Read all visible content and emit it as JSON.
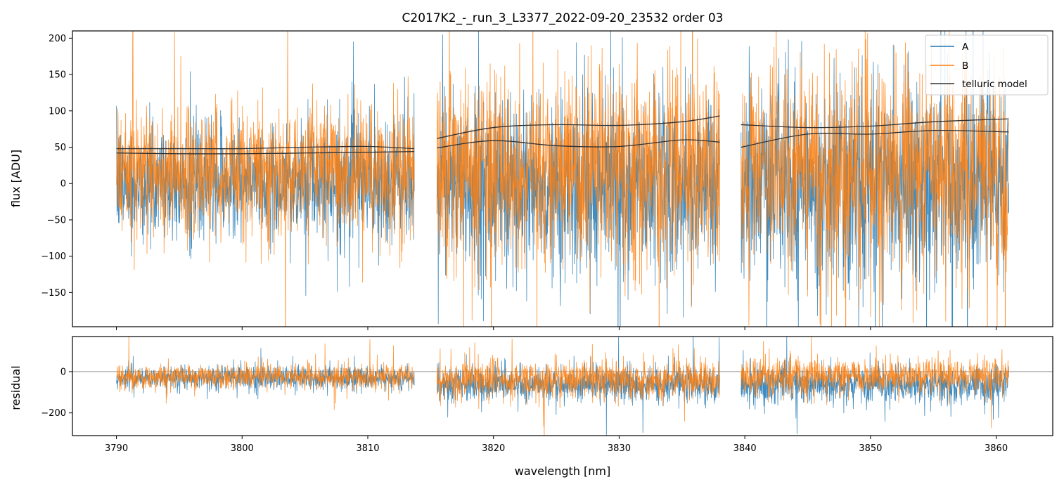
{
  "chart_data": {
    "type": "line",
    "title": "C2017K2_-_run_3_L3377_2022-09-20_23532  order 03",
    "xlabel": "wavelength [nm]",
    "xlim": [
      3786.5,
      3864.5
    ],
    "x_ticks": [
      3790,
      3800,
      3810,
      3820,
      3830,
      3840,
      3850,
      3860
    ],
    "x_tick_labels": [
      "3790",
      "3800",
      "3810",
      "3820",
      "3830",
      "3840",
      "3850",
      "3860"
    ],
    "segments": [
      [
        3790.0,
        3813.7
      ],
      [
        3815.5,
        3838.0
      ],
      [
        3839.7,
        3861.0
      ]
    ],
    "colors": {
      "A": "#1f77b4",
      "B": "#ff7f0e",
      "telluric": "#333333",
      "zero_line": "#555555"
    },
    "legend": {
      "location": "top-right",
      "entries": [
        "A",
        "B",
        "telluric model"
      ]
    },
    "panels": [
      {
        "name": "flux",
        "ylabel": "flux [ADU]",
        "ylim": [
          -197,
          210
        ],
        "y_ticks": [
          200,
          150,
          100,
          50,
          0,
          -50,
          -100,
          -150
        ],
        "y_tick_labels": [
          "200",
          "150",
          "100",
          "50",
          "0",
          "−50",
          "−100",
          "−150"
        ],
        "series": [
          {
            "name": "A",
            "description": "dense noisy spectrum centred near 0, lows to about -190, highs to about 180",
            "segment_stats": [
              {
                "center": 0,
                "spread": 70
              },
              {
                "center": 0,
                "spread": 110
              },
              {
                "center": 0,
                "spread": 125
              }
            ]
          },
          {
            "name": "B",
            "description": "dense noisy spectrum centred near 10-20, frequently exceeding 200",
            "segment_stats": [
              {
                "center": 15,
                "spread": 80
              },
              {
                "center": 20,
                "spread": 120
              },
              {
                "center": 20,
                "spread": 125
              }
            ]
          },
          {
            "name": "telluric model",
            "curves": [
              {
                "x": [
                  3790,
                  3795,
                  3800,
                  3805,
                  3810,
                  3813.7
                ],
                "y": [
                  48,
                  48,
                  48,
                  50,
                  51,
                  48
                ]
              },
              {
                "x": [
                  3790,
                  3795,
                  3800,
                  3805,
                  3810,
                  3813.7
                ],
                "y": [
                  42,
                  41,
                  41,
                  42,
                  43,
                  44
                ]
              },
              {
                "x": [
                  3815.5,
                  3820,
                  3825,
                  3830,
                  3835,
                  3838
                ],
                "y": [
                  62,
                  77,
                  81,
                  80,
                  85,
                  93
                ]
              },
              {
                "x": [
                  3815.5,
                  3820,
                  3825,
                  3830,
                  3835,
                  3838
                ],
                "y": [
                  49,
                  59,
                  52,
                  51,
                  60,
                  57
                ]
              },
              {
                "x": [
                  3839.7,
                  3845,
                  3850,
                  3855,
                  3861
                ],
                "y": [
                  81,
                  77,
                  79,
                  85,
                  89
                ]
              },
              {
                "x": [
                  3839.7,
                  3845,
                  3850,
                  3855,
                  3861
                ],
                "y": [
                  50,
                  68,
                  68,
                  73,
                  71
                ]
              }
            ]
          }
        ]
      },
      {
        "name": "residual",
        "ylabel": "residual",
        "ylim": [
          -310,
          170
        ],
        "y_ticks": [
          0,
          -200
        ],
        "y_tick_labels": [
          "0",
          "−200"
        ],
        "zero_line": true,
        "series": [
          {
            "name": "A",
            "segment_stats": [
              {
                "center": -30,
                "spread": 50
              },
              {
                "center": -60,
                "spread": 75
              },
              {
                "center": -60,
                "spread": 85
              }
            ]
          },
          {
            "name": "B",
            "segment_stats": [
              {
                "center": -25,
                "spread": 55
              },
              {
                "center": -40,
                "spread": 85
              },
              {
                "center": -25,
                "spread": 80
              }
            ]
          }
        ]
      }
    ]
  }
}
